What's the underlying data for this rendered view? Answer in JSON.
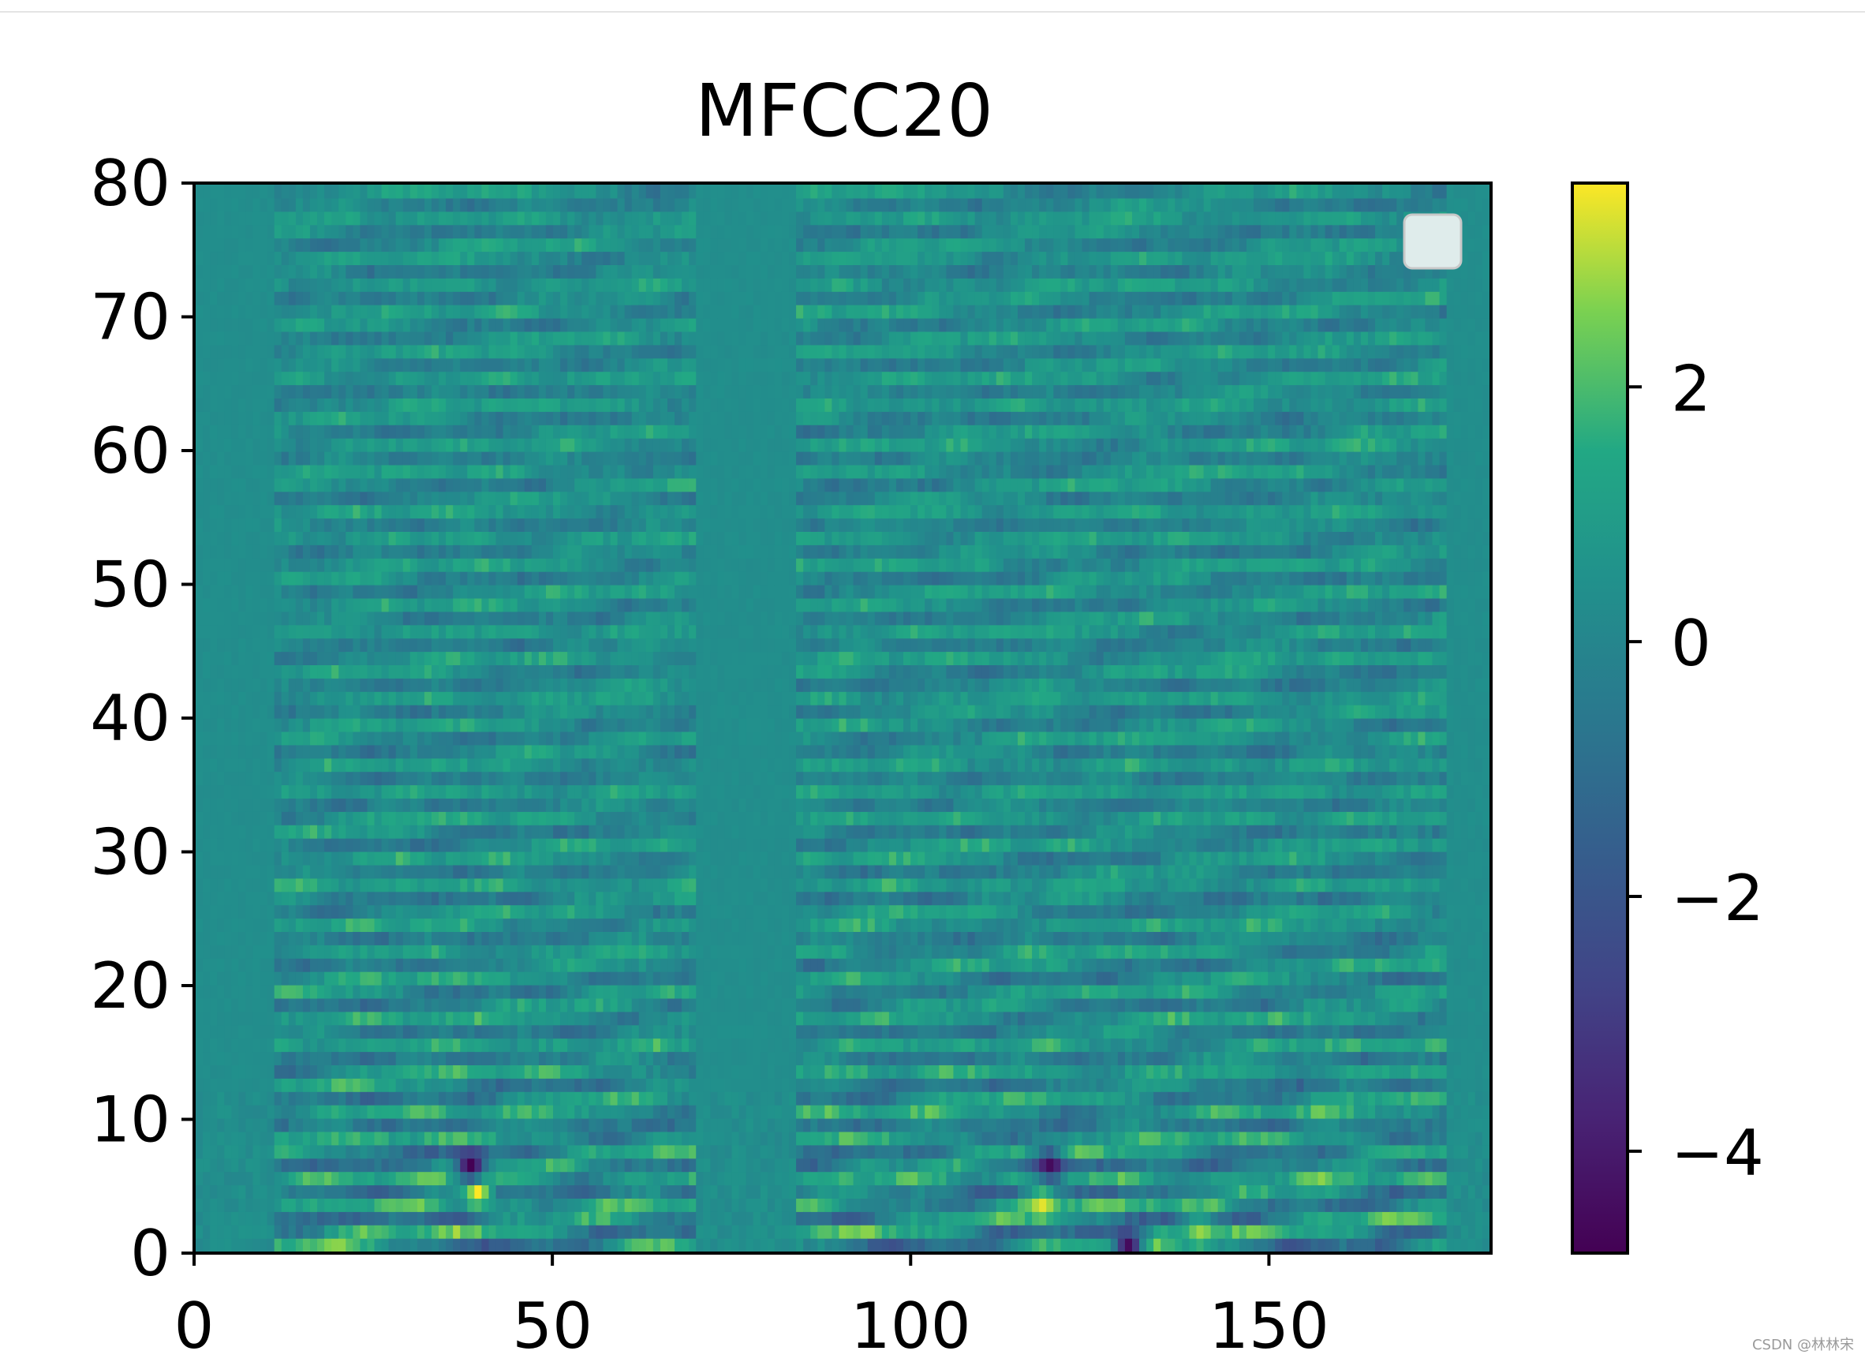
{
  "chart_data": {
    "type": "heatmap",
    "title": "MFCC20",
    "xlabel": "",
    "ylabel": "",
    "xlim": [
      0,
      181
    ],
    "ylim": [
      0,
      80
    ],
    "x_ticks": [
      0,
      50,
      100,
      150
    ],
    "x_tick_labels": [
      "0",
      "50",
      "100",
      "150"
    ],
    "y_ticks": [
      0,
      10,
      20,
      30,
      40,
      50,
      60,
      70,
      80
    ],
    "y_tick_labels": [
      "0",
      "10",
      "20",
      "30",
      "40",
      "50",
      "60",
      "70",
      "80"
    ],
    "colormap": "viridis",
    "colorbar": {
      "range": [
        -4.8,
        3.6
      ],
      "ticks": [
        2,
        0,
        -2,
        -4
      ],
      "tick_labels": [
        "2",
        "0",
        "−2",
        "−4"
      ]
    },
    "grid": false,
    "legend": {
      "placement": "upper-right",
      "entries": []
    },
    "frames": 181,
    "coefficients": 80,
    "segments": [
      {
        "x": [
          0,
          11
        ],
        "activity": "near zero"
      },
      {
        "x": [
          11,
          70
        ],
        "activity": "alternating positive/negative bands"
      },
      {
        "x": [
          70,
          84
        ],
        "activity": "near zero"
      },
      {
        "x": [
          84,
          175
        ],
        "activity": "alternating positive/negative bands"
      },
      {
        "x": [
          175,
          181
        ],
        "activity": "near zero"
      }
    ],
    "notable_values": [
      {
        "x": 39,
        "y": 4,
        "value": 3.6
      },
      {
        "x": 38,
        "y": 6,
        "value": -4.8
      },
      {
        "x": 118,
        "y": 3,
        "value": 3.4
      },
      {
        "x": 119,
        "y": 6,
        "value": -4.5
      },
      {
        "x": 140,
        "y": 1,
        "value": 2.8
      },
      {
        "x": 130,
        "y": 0,
        "value": -4.5
      }
    ]
  },
  "watermark": "CSDN @林林宋"
}
